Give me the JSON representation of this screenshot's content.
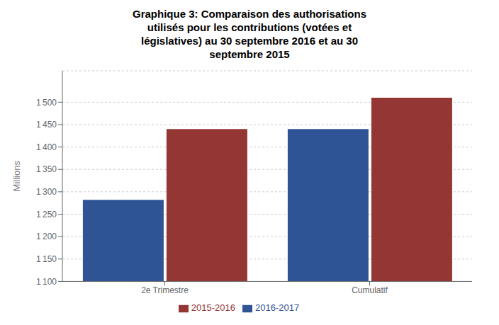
{
  "chart_data": {
    "type": "bar",
    "title": "Graphique 3: Comparaison des authorisations\nutilisés pour les contributions (votées et\nlégislatives) au 30 septembre 2016 et au 30\nseptembre 2015",
    "categories": [
      "2e Trimestre",
      "Cumulatif"
    ],
    "series": [
      {
        "name": "2016-2017",
        "color": "#2f5496",
        "values": [
          1282,
          1440
        ]
      },
      {
        "name": "2015-2016",
        "color": "#943634",
        "values": [
          1440,
          1510
        ]
      }
    ],
    "ylabel": "Millions",
    "ylim": [
      1100,
      1570
    ],
    "yticks": [
      {
        "value": 1100,
        "label": "1 100"
      },
      {
        "value": 1150,
        "label": "1 150"
      },
      {
        "value": 1200,
        "label": "1 200"
      },
      {
        "value": 1250,
        "label": "1 250"
      },
      {
        "value": 1300,
        "label": "1 300"
      },
      {
        "value": 1350,
        "label": "1 350"
      },
      {
        "value": 1400,
        "label": "1 400"
      },
      {
        "value": 1450,
        "label": "1 450"
      },
      {
        "value": 1500,
        "label": "1 500"
      }
    ],
    "grid": true,
    "legend": "bottom"
  }
}
